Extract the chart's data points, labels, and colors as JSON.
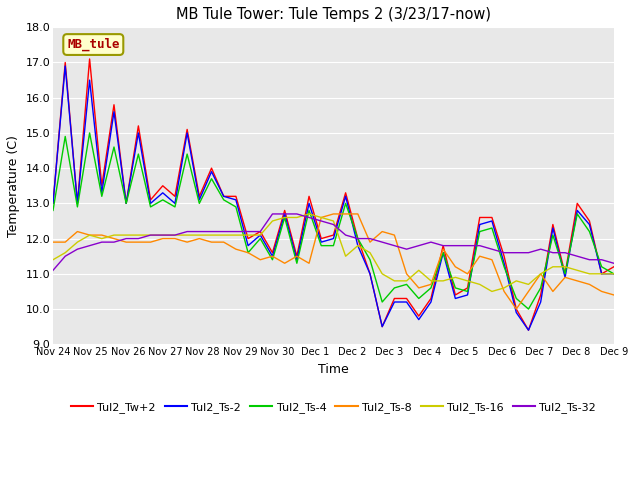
{
  "title": "MB Tule Tower: Tule Temps 2 (3/23/17-now)",
  "xlabel": "Time",
  "ylabel": "Temperature (C)",
  "ylim": [
    9.0,
    18.0
  ],
  "yticks": [
    9.0,
    10.0,
    11.0,
    12.0,
    13.0,
    14.0,
    15.0,
    16.0,
    17.0,
    18.0
  ],
  "xtick_labels": [
    "Nov 24",
    "Nov 25",
    "Nov 26",
    "Nov 27",
    "Nov 28",
    "Nov 29",
    "Nov 30",
    "Dec 1",
    "Dec 2",
    "Dec 3",
    "Dec 4",
    "Dec 5",
    "Dec 6",
    "Dec 7",
    "Dec 8",
    "Dec 9"
  ],
  "fig_bg": "#d8d8d8",
  "plot_bg": "#d8d8d8",
  "grid_color": "#ffffff",
  "legend_label": "MB_tule",
  "legend_bg": "#ffffcc",
  "legend_edge": "#999900",
  "series": [
    {
      "label": "Tul2_Tw+2",
      "color": "#ff0000"
    },
    {
      "label": "Tul2_Ts-2",
      "color": "#0000ff"
    },
    {
      "label": "Tul2_Ts-4",
      "color": "#00cc00"
    },
    {
      "label": "Tul2_Ts-8",
      "color": "#ff8800"
    },
    {
      "label": "Tul2_Ts-16",
      "color": "#cccc00"
    },
    {
      "label": "Tul2_Ts-32",
      "color": "#8800cc"
    }
  ],
  "tw2": [
    13.0,
    17.0,
    13.0,
    17.1,
    13.5,
    15.8,
    13.0,
    15.2,
    13.1,
    13.5,
    13.2,
    15.1,
    13.2,
    14.0,
    13.2,
    13.2,
    12.0,
    12.2,
    11.6,
    12.8,
    11.5,
    13.2,
    12.0,
    12.1,
    13.3,
    12.0,
    11.0,
    9.5,
    10.3,
    10.3,
    9.8,
    10.3,
    11.8,
    10.4,
    10.6,
    12.6,
    12.6,
    11.5,
    10.0,
    9.4,
    10.4,
    12.4,
    11.0,
    13.0,
    12.5,
    11.0,
    11.2
  ],
  "ts2": [
    13.0,
    16.9,
    13.0,
    16.5,
    13.3,
    15.6,
    13.0,
    15.0,
    13.0,
    13.3,
    13.0,
    15.0,
    13.1,
    13.9,
    13.2,
    13.1,
    11.8,
    12.1,
    11.5,
    12.7,
    11.4,
    13.0,
    11.9,
    12.0,
    13.2,
    11.8,
    11.0,
    9.5,
    10.2,
    10.2,
    9.7,
    10.2,
    11.6,
    10.3,
    10.4,
    12.4,
    12.5,
    11.3,
    9.9,
    9.4,
    10.2,
    12.3,
    10.9,
    12.8,
    12.4,
    11.0,
    11.0
  ],
  "ts4": [
    12.8,
    14.9,
    12.9,
    15.0,
    13.2,
    14.6,
    13.0,
    14.4,
    12.9,
    13.1,
    12.9,
    14.4,
    13.0,
    13.7,
    13.1,
    12.9,
    11.6,
    12.0,
    11.4,
    12.6,
    11.3,
    12.8,
    11.8,
    11.8,
    13.0,
    12.0,
    11.4,
    10.2,
    10.6,
    10.7,
    10.3,
    10.6,
    11.6,
    10.6,
    10.5,
    12.2,
    12.3,
    11.2,
    10.3,
    10.0,
    10.6,
    12.1,
    11.0,
    12.7,
    12.2,
    11.2,
    11.0
  ],
  "ts8": [
    11.9,
    11.9,
    12.2,
    12.1,
    12.1,
    12.0,
    11.9,
    11.9,
    11.9,
    12.0,
    12.0,
    11.9,
    12.0,
    11.9,
    11.9,
    11.7,
    11.6,
    11.4,
    11.5,
    11.3,
    11.5,
    11.3,
    12.6,
    12.7,
    12.7,
    12.7,
    11.9,
    12.2,
    12.1,
    11.0,
    10.6,
    10.7,
    11.7,
    11.2,
    11.0,
    11.5,
    11.4,
    10.5,
    10.0,
    10.5,
    11.0,
    10.5,
    10.9,
    10.8,
    10.7,
    10.5,
    10.4
  ],
  "ts16": [
    11.4,
    11.6,
    11.9,
    12.1,
    12.0,
    12.1,
    12.1,
    12.1,
    12.1,
    12.1,
    12.1,
    12.1,
    12.1,
    12.1,
    12.1,
    12.1,
    12.1,
    12.1,
    12.5,
    12.6,
    12.6,
    12.7,
    12.6,
    12.5,
    11.5,
    11.8,
    11.6,
    11.0,
    10.8,
    10.8,
    11.1,
    10.8,
    10.8,
    10.9,
    10.8,
    10.7,
    10.5,
    10.6,
    10.8,
    10.7,
    11.0,
    11.2,
    11.2,
    11.1,
    11.0,
    11.0,
    11.0
  ],
  "ts32": [
    11.1,
    11.5,
    11.7,
    11.8,
    11.9,
    11.9,
    12.0,
    12.0,
    12.1,
    12.1,
    12.1,
    12.2,
    12.2,
    12.2,
    12.2,
    12.2,
    12.2,
    12.2,
    12.7,
    12.7,
    12.7,
    12.6,
    12.5,
    12.4,
    12.1,
    12.0,
    12.0,
    11.9,
    11.8,
    11.7,
    11.8,
    11.9,
    11.8,
    11.8,
    11.8,
    11.8,
    11.7,
    11.6,
    11.6,
    11.6,
    11.7,
    11.6,
    11.6,
    11.5,
    11.4,
    11.4,
    11.3
  ]
}
